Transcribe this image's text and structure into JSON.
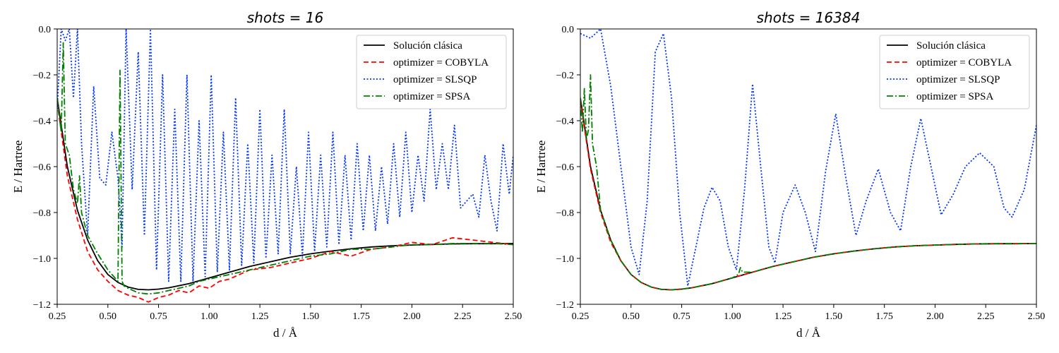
{
  "chart_data": [
    {
      "type": "line",
      "title": "shots = 16",
      "xlabel": "d / Å",
      "ylabel": "E / Hartree",
      "xlim": [
        0.25,
        2.5
      ],
      "ylim": [
        -1.2,
        0.0
      ],
      "xticks": [
        "0.25",
        "0.50",
        "0.75",
        "1.00",
        "1.25",
        "1.50",
        "1.75",
        "2.00",
        "2.25",
        "2.50"
      ],
      "yticks": [
        "−1.2",
        "−1.0",
        "−0.8",
        "−0.6",
        "−0.4",
        "−0.2",
        "0.0"
      ],
      "grid": false,
      "legend_position": "top-right",
      "series": [
        {
          "name": "Solución clásica",
          "color": "#000000",
          "style": "solid",
          "x": [
            0.25,
            0.3,
            0.35,
            0.4,
            0.45,
            0.5,
            0.55,
            0.6,
            0.65,
            0.7,
            0.75,
            0.8,
            0.9,
            1.0,
            1.1,
            1.2,
            1.3,
            1.4,
            1.5,
            1.6,
            1.7,
            1.8,
            1.9,
            2.0,
            2.1,
            2.2,
            2.3,
            2.4,
            2.5
          ],
          "y": [
            -0.3,
            -0.6,
            -0.79,
            -0.92,
            -1.01,
            -1.07,
            -1.105,
            -1.125,
            -1.135,
            -1.137,
            -1.134,
            -1.128,
            -1.11,
            -1.085,
            -1.06,
            -1.035,
            -1.015,
            -0.995,
            -0.98,
            -0.968,
            -0.958,
            -0.95,
            -0.945,
            -0.942,
            -0.939,
            -0.937,
            -0.936,
            -0.936,
            -0.935
          ]
        },
        {
          "name": "optimizer = COBYLA",
          "color": "#ff0000",
          "style": "dashed",
          "x": [
            0.25,
            0.3,
            0.35,
            0.4,
            0.45,
            0.5,
            0.55,
            0.6,
            0.65,
            0.7,
            0.75,
            0.8,
            0.85,
            0.9,
            0.95,
            1.0,
            1.05,
            1.1,
            1.2,
            1.3,
            1.4,
            1.5,
            1.6,
            1.7,
            1.8,
            1.9,
            2.0,
            2.1,
            2.2,
            2.3,
            2.4,
            2.5
          ],
          "y": [
            -0.32,
            -0.64,
            -0.83,
            -0.97,
            -1.05,
            -1.1,
            -1.14,
            -1.16,
            -1.17,
            -1.19,
            -1.17,
            -1.16,
            -1.14,
            -1.15,
            -1.12,
            -1.13,
            -1.1,
            -1.09,
            -1.05,
            -1.04,
            -1.02,
            -1.0,
            -0.97,
            -0.99,
            -0.96,
            -0.95,
            -0.93,
            -0.94,
            -0.91,
            -0.92,
            -0.93,
            -0.94
          ]
        },
        {
          "name": "optimizer = SLSQP",
          "color": "#0033ff",
          "style": "dotted",
          "x": [
            0.25,
            0.27,
            0.29,
            0.31,
            0.33,
            0.35,
            0.37,
            0.4,
            0.43,
            0.46,
            0.49,
            0.52,
            0.55,
            0.57,
            0.59,
            0.62,
            0.65,
            0.68,
            0.71,
            0.74,
            0.77,
            0.8,
            0.83,
            0.86,
            0.89,
            0.92,
            0.95,
            0.98,
            1.01,
            1.04,
            1.07,
            1.1,
            1.13,
            1.16,
            1.19,
            1.22,
            1.25,
            1.28,
            1.31,
            1.34,
            1.37,
            1.4,
            1.43,
            1.46,
            1.49,
            1.52,
            1.55,
            1.58,
            1.61,
            1.64,
            1.67,
            1.7,
            1.73,
            1.76,
            1.79,
            1.82,
            1.85,
            1.88,
            1.91,
            1.94,
            1.97,
            2.0,
            2.03,
            2.06,
            2.09,
            2.12,
            2.15,
            2.18,
            2.21,
            2.24,
            2.27,
            2.3,
            2.33,
            2.36,
            2.39,
            2.42,
            2.45,
            2.48,
            2.5
          ],
          "y": [
            -0.35,
            0.0,
            -0.05,
            0.0,
            -0.3,
            0.0,
            -0.5,
            -0.9,
            -0.25,
            -0.65,
            -0.68,
            -0.45,
            -0.65,
            -0.95,
            0.0,
            -0.7,
            -0.1,
            -0.9,
            0.0,
            -1.05,
            -0.2,
            -1.1,
            -0.35,
            -1.1,
            -0.2,
            -1.1,
            -0.4,
            -1.08,
            -0.2,
            -1.06,
            -0.45,
            -1.05,
            -0.3,
            -1.03,
            -0.5,
            -1.02,
            -0.35,
            -1.0,
            -0.55,
            -0.98,
            -0.35,
            -0.98,
            -0.6,
            -0.99,
            -0.45,
            -0.97,
            -0.55,
            -0.95,
            -0.45,
            -0.94,
            -0.55,
            -0.92,
            -0.5,
            -0.88,
            -0.55,
            -0.88,
            -0.6,
            -0.85,
            -0.5,
            -0.82,
            -0.45,
            -0.8,
            -0.55,
            -0.75,
            -0.35,
            -0.7,
            -0.5,
            -0.7,
            -0.42,
            -0.78,
            -0.75,
            -0.72,
            -0.82,
            -0.55,
            -0.75,
            -0.88,
            -0.5,
            -0.72,
            -0.55
          ]
        },
        {
          "name": "optimizer = SPSA",
          "color": "#008000",
          "style": "dashdot",
          "x": [
            0.25,
            0.27,
            0.28,
            0.29,
            0.31,
            0.33,
            0.35,
            0.36,
            0.37,
            0.4,
            0.45,
            0.5,
            0.55,
            0.56,
            0.57,
            0.58,
            0.6,
            0.65,
            0.7,
            0.75,
            0.8,
            0.85,
            0.9,
            0.95,
            1.0,
            1.05,
            1.1,
            1.2,
            1.3,
            1.4,
            1.5,
            1.6,
            1.7,
            1.8,
            1.9,
            2.0,
            2.1,
            2.2,
            2.3,
            2.4,
            2.5
          ],
          "y": [
            -0.3,
            -0.45,
            -0.06,
            -0.5,
            -0.55,
            -0.7,
            -0.76,
            -0.64,
            -0.8,
            -0.9,
            -0.98,
            -1.05,
            -1.1,
            -0.18,
            -1.1,
            -1.12,
            -1.13,
            -1.15,
            -1.155,
            -1.15,
            -1.14,
            -1.13,
            -1.12,
            -1.1,
            -1.09,
            -1.08,
            -1.07,
            -1.05,
            -1.03,
            -1.01,
            -0.99,
            -0.98,
            -0.96,
            -0.96,
            -0.95,
            -0.94,
            -0.94,
            -0.935,
            -0.935,
            -0.935,
            -0.94
          ]
        }
      ]
    },
    {
      "type": "line",
      "title": "shots = 16384",
      "xlabel": "d / Å",
      "ylabel": "E / Hartree",
      "xlim": [
        0.25,
        2.5
      ],
      "ylim": [
        -1.2,
        0.0
      ],
      "xticks": [
        "0.25",
        "0.50",
        "0.75",
        "1.00",
        "1.25",
        "1.50",
        "1.75",
        "2.00",
        "2.25",
        "2.50"
      ],
      "yticks": [
        "−1.2",
        "−1.0",
        "−0.8",
        "−0.6",
        "−0.4",
        "−0.2",
        "0.0"
      ],
      "grid": false,
      "legend_position": "top-right",
      "series": [
        {
          "name": "Solución clásica",
          "color": "#000000",
          "style": "solid",
          "x": [
            0.25,
            0.3,
            0.35,
            0.4,
            0.45,
            0.5,
            0.55,
            0.6,
            0.65,
            0.7,
            0.75,
            0.8,
            0.9,
            1.0,
            1.1,
            1.2,
            1.3,
            1.4,
            1.5,
            1.6,
            1.7,
            1.8,
            1.9,
            2.0,
            2.1,
            2.2,
            2.3,
            2.4,
            2.5
          ],
          "y": [
            -0.3,
            -0.6,
            -0.79,
            -0.92,
            -1.01,
            -1.07,
            -1.105,
            -1.125,
            -1.135,
            -1.137,
            -1.134,
            -1.128,
            -1.11,
            -1.085,
            -1.06,
            -1.035,
            -1.015,
            -0.995,
            -0.98,
            -0.968,
            -0.958,
            -0.95,
            -0.945,
            -0.942,
            -0.939,
            -0.937,
            -0.936,
            -0.936,
            -0.935
          ]
        },
        {
          "name": "optimizer = COBYLA",
          "color": "#ff0000",
          "style": "dashed",
          "x": [
            0.25,
            0.3,
            0.35,
            0.4,
            0.45,
            0.5,
            0.55,
            0.6,
            0.65,
            0.7,
            0.75,
            0.8,
            0.9,
            1.0,
            1.1,
            1.2,
            1.3,
            1.4,
            1.5,
            1.6,
            1.7,
            1.8,
            1.9,
            2.0,
            2.1,
            2.2,
            2.3,
            2.4,
            2.5
          ],
          "y": [
            -0.31,
            -0.61,
            -0.8,
            -0.93,
            -1.01,
            -1.07,
            -1.105,
            -1.125,
            -1.135,
            -1.137,
            -1.134,
            -1.128,
            -1.11,
            -1.085,
            -1.06,
            -1.035,
            -1.015,
            -0.995,
            -0.98,
            -0.968,
            -0.958,
            -0.95,
            -0.945,
            -0.942,
            -0.939,
            -0.937,
            -0.936,
            -0.936,
            -0.935
          ]
        },
        {
          "name": "optimizer = SLSQP",
          "color": "#0033ff",
          "style": "dotted",
          "x": [
            0.25,
            0.3,
            0.35,
            0.4,
            0.45,
            0.5,
            0.54,
            0.58,
            0.62,
            0.66,
            0.7,
            0.74,
            0.78,
            0.82,
            0.86,
            0.9,
            0.94,
            0.98,
            1.02,
            1.06,
            1.1,
            1.14,
            1.18,
            1.21,
            1.25,
            1.31,
            1.36,
            1.41,
            1.46,
            1.51,
            1.56,
            1.61,
            1.66,
            1.72,
            1.78,
            1.83,
            1.88,
            1.93,
            1.98,
            2.03,
            2.09,
            2.15,
            2.22,
            2.29,
            2.34,
            2.38,
            2.44,
            2.5
          ],
          "y": [
            -0.02,
            -0.04,
            0.0,
            -0.25,
            -0.6,
            -0.95,
            -1.07,
            -0.75,
            -0.1,
            -0.02,
            -0.3,
            -0.8,
            -1.12,
            -0.95,
            -0.78,
            -0.69,
            -0.75,
            -0.95,
            -1.05,
            -0.7,
            -0.24,
            -0.6,
            -0.95,
            -1.02,
            -0.8,
            -0.68,
            -0.8,
            -0.97,
            -0.62,
            -0.37,
            -0.65,
            -0.9,
            -0.75,
            -0.61,
            -0.8,
            -0.88,
            -0.6,
            -0.39,
            -0.6,
            -0.81,
            -0.72,
            -0.6,
            -0.54,
            -0.6,
            -0.78,
            -0.82,
            -0.7,
            -0.42
          ]
        },
        {
          "name": "optimizer = SPSA",
          "color": "#008000",
          "style": "dashdot",
          "x": [
            0.25,
            0.26,
            0.27,
            0.28,
            0.29,
            0.3,
            0.31,
            0.33,
            0.35,
            0.4,
            0.45,
            0.5,
            0.55,
            0.6,
            0.65,
            0.7,
            0.75,
            0.8,
            0.9,
            1.0,
            1.03,
            1.04,
            1.05,
            1.1,
            1.2,
            1.3,
            1.4,
            1.5,
            1.6,
            1.7,
            1.8,
            1.9,
            2.0,
            2.1,
            2.2,
            2.3,
            2.4,
            2.5
          ],
          "y": [
            -0.3,
            -0.45,
            -0.26,
            -0.48,
            -0.44,
            -0.2,
            -0.5,
            -0.6,
            -0.79,
            -0.92,
            -1.01,
            -1.07,
            -1.105,
            -1.125,
            -1.135,
            -1.137,
            -1.134,
            -1.128,
            -1.11,
            -1.085,
            -1.07,
            -1.04,
            -1.06,
            -1.06,
            -1.035,
            -1.015,
            -0.995,
            -0.98,
            -0.968,
            -0.958,
            -0.95,
            -0.945,
            -0.942,
            -0.939,
            -0.937,
            -0.936,
            -0.936,
            -0.935
          ]
        }
      ]
    }
  ]
}
